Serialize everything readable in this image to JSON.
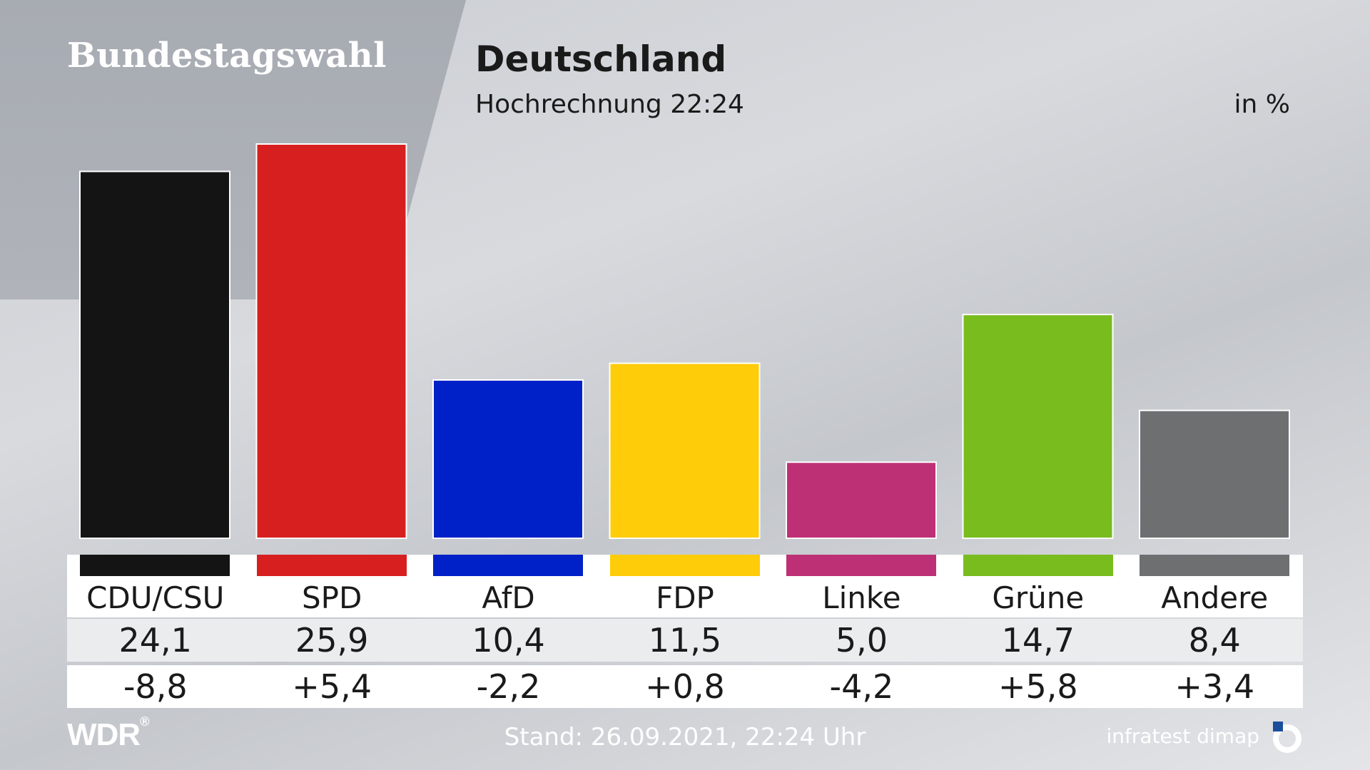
{
  "header": {
    "site_title": "Bundestagswahl",
    "title": "Deutschland",
    "subtitle": "Hochrechnung 22:24",
    "unit": "in %"
  },
  "footer": {
    "logo_text": "WDR",
    "status": "Stand: 26.09.2021, 22:24 Uhr",
    "source": "infratest dimap"
  },
  "chart_data": {
    "type": "bar",
    "title": "Deutschland",
    "subtitle": "Hochrechnung 22:24",
    "unit": "in %",
    "categories": [
      "CDU/CSU",
      "SPD",
      "AfD",
      "FDP",
      "Linke",
      "Grüne",
      "Andere"
    ],
    "values": [
      24.1,
      25.9,
      10.4,
      11.5,
      5.0,
      14.7,
      8.4
    ],
    "value_labels": [
      "24,1",
      "25,9",
      "10,4",
      "11,5",
      "5,0",
      "14,7",
      "8,4"
    ],
    "change_labels": [
      "-8,8",
      "+5,4",
      "-2,2",
      "+0,8",
      "-4,2",
      "+5,8",
      "+3,4"
    ],
    "colors": [
      "#141414",
      "#d71f1f",
      "#0021c7",
      "#ffcc0a",
      "#be3075",
      "#78bc1e",
      "#6e6f71"
    ],
    "ylim": [
      0,
      26
    ],
    "grid": false,
    "legend": "none"
  }
}
